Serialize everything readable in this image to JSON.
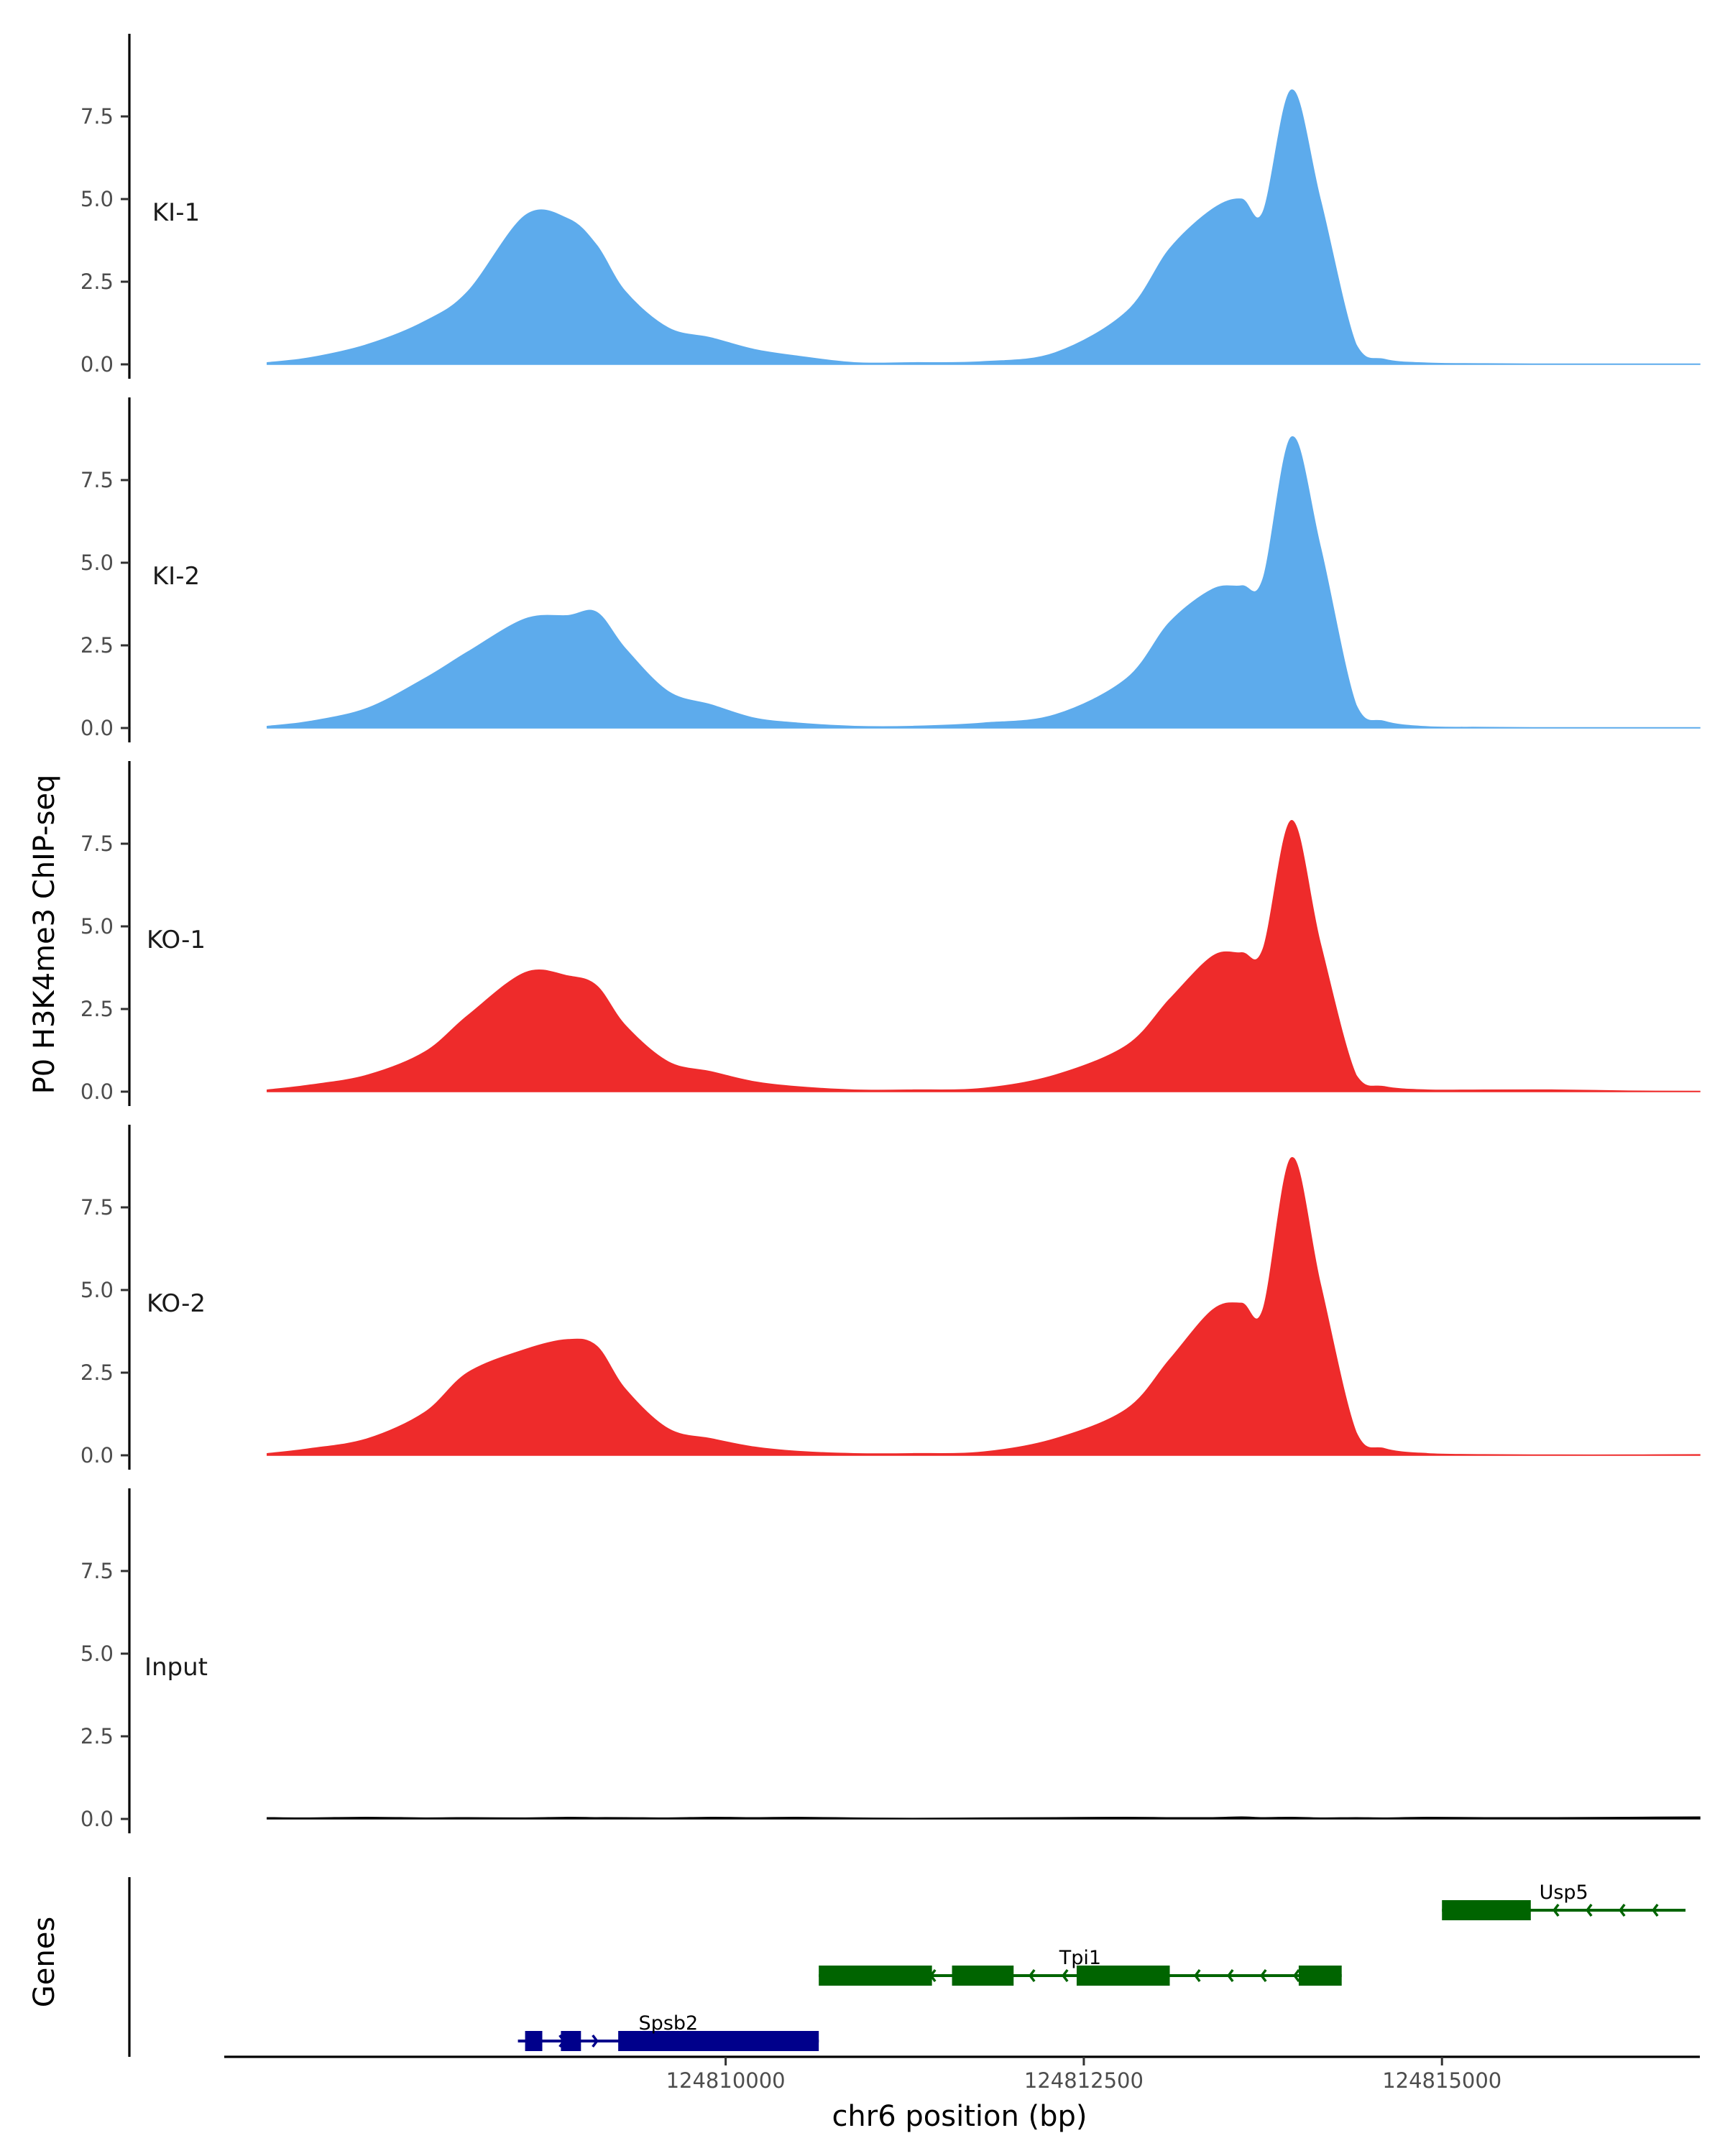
{
  "chart_data": {
    "type": "area",
    "ylabel": "P0 H3K4me3 ChIP-seq",
    "xlabel": "chr6 position (bp)",
    "genes_label": "Genes",
    "ylim": [
      0,
      10
    ],
    "yticks": [
      "0.0",
      "2.5",
      "5.0",
      "7.5"
    ],
    "xlim": [
      124806500,
      124816800
    ],
    "xticks": [
      124810000,
      124812500,
      124815000
    ],
    "xtick_labels": [
      "124810000",
      "124812500",
      "124815000"
    ],
    "x": [
      124806800,
      124807100,
      124807500,
      124807900,
      124808200,
      124808600,
      124808900,
      124809100,
      124809300,
      124809600,
      124809900,
      124810200,
      124810500,
      124810900,
      124811300,
      124811800,
      124812300,
      124812800,
      124813100,
      124813400,
      124813600,
      124813750,
      124813950,
      124814150,
      124814400,
      124814600,
      124814900,
      124815300,
      124815800,
      124816300,
      124816800
    ],
    "series": [
      {
        "name": "KI-1",
        "color": "#5DABEC",
        "values": [
          0.05,
          0.2,
          0.6,
          1.3,
          2.2,
          4.5,
          4.4,
          3.6,
          2.2,
          1.1,
          0.8,
          0.45,
          0.25,
          0.05,
          0.05,
          0.08,
          0.35,
          1.6,
          3.5,
          4.7,
          5.0,
          4.6,
          8.3,
          5.0,
          0.6,
          0.15,
          0.04,
          0.02,
          0.01,
          0.01,
          0.01
        ]
      },
      {
        "name": "KI-2",
        "color": "#5DABEC",
        "values": [
          0.05,
          0.2,
          0.6,
          1.5,
          2.3,
          3.3,
          3.4,
          3.5,
          2.4,
          1.1,
          0.7,
          0.3,
          0.15,
          0.05,
          0.05,
          0.15,
          0.4,
          1.5,
          3.2,
          4.2,
          4.3,
          4.5,
          8.8,
          5.5,
          0.7,
          0.2,
          0.04,
          0.02,
          0.01,
          0.01,
          0.01
        ]
      },
      {
        "name": "KO-1",
        "color": "#EE2B2B",
        "values": [
          0.05,
          0.2,
          0.5,
          1.2,
          2.3,
          3.6,
          3.5,
          3.2,
          2.0,
          0.9,
          0.6,
          0.3,
          0.15,
          0.05,
          0.05,
          0.1,
          0.5,
          1.4,
          2.8,
          4.1,
          4.2,
          4.3,
          8.2,
          4.5,
          0.5,
          0.15,
          0.05,
          0.05,
          0.05,
          0.02,
          0.01
        ]
      },
      {
        "name": "KO-2",
        "color": "#EE2B2B",
        "values": [
          0.05,
          0.2,
          0.5,
          1.3,
          2.5,
          3.2,
          3.5,
          3.3,
          2.0,
          0.8,
          0.5,
          0.25,
          0.12,
          0.05,
          0.05,
          0.1,
          0.5,
          1.4,
          2.9,
          4.4,
          4.6,
          4.4,
          9.0,
          5.2,
          0.7,
          0.2,
          0.05,
          0.02,
          0.01,
          0.01,
          0.02
        ]
      },
      {
        "name": "Input",
        "color": "#000000",
        "values": [
          0.04,
          0.03,
          0.05,
          0.03,
          0.04,
          0.03,
          0.05,
          0.04,
          0.04,
          0.03,
          0.05,
          0.04,
          0.05,
          0.03,
          0.02,
          0.03,
          0.04,
          0.05,
          0.04,
          0.04,
          0.06,
          0.04,
          0.05,
          0.03,
          0.04,
          0.03,
          0.05,
          0.04,
          0.04,
          0.05,
          0.06
        ]
      }
    ],
    "genes": [
      {
        "name": "Usp5",
        "color": "#006400",
        "strand": "-",
        "start": 124815000,
        "end": 124816700,
        "exons": [
          [
            124815000,
            124815620
          ]
        ]
      },
      {
        "name": "Tpi1",
        "color": "#006400",
        "strand": "-",
        "start": 124810650,
        "end": 124814300,
        "exons": [
          [
            124810650,
            124811440
          ],
          [
            124811580,
            124812010
          ],
          [
            124812450,
            124813100
          ],
          [
            124814000,
            124814300
          ]
        ]
      },
      {
        "name": "Spsb2",
        "color": "#00008B",
        "strand": "+",
        "start": 124808550,
        "end": 124810650,
        "exons": [
          [
            124808600,
            124808720
          ],
          [
            124808850,
            124808990
          ],
          [
            124809250,
            124810650
          ]
        ]
      }
    ]
  }
}
